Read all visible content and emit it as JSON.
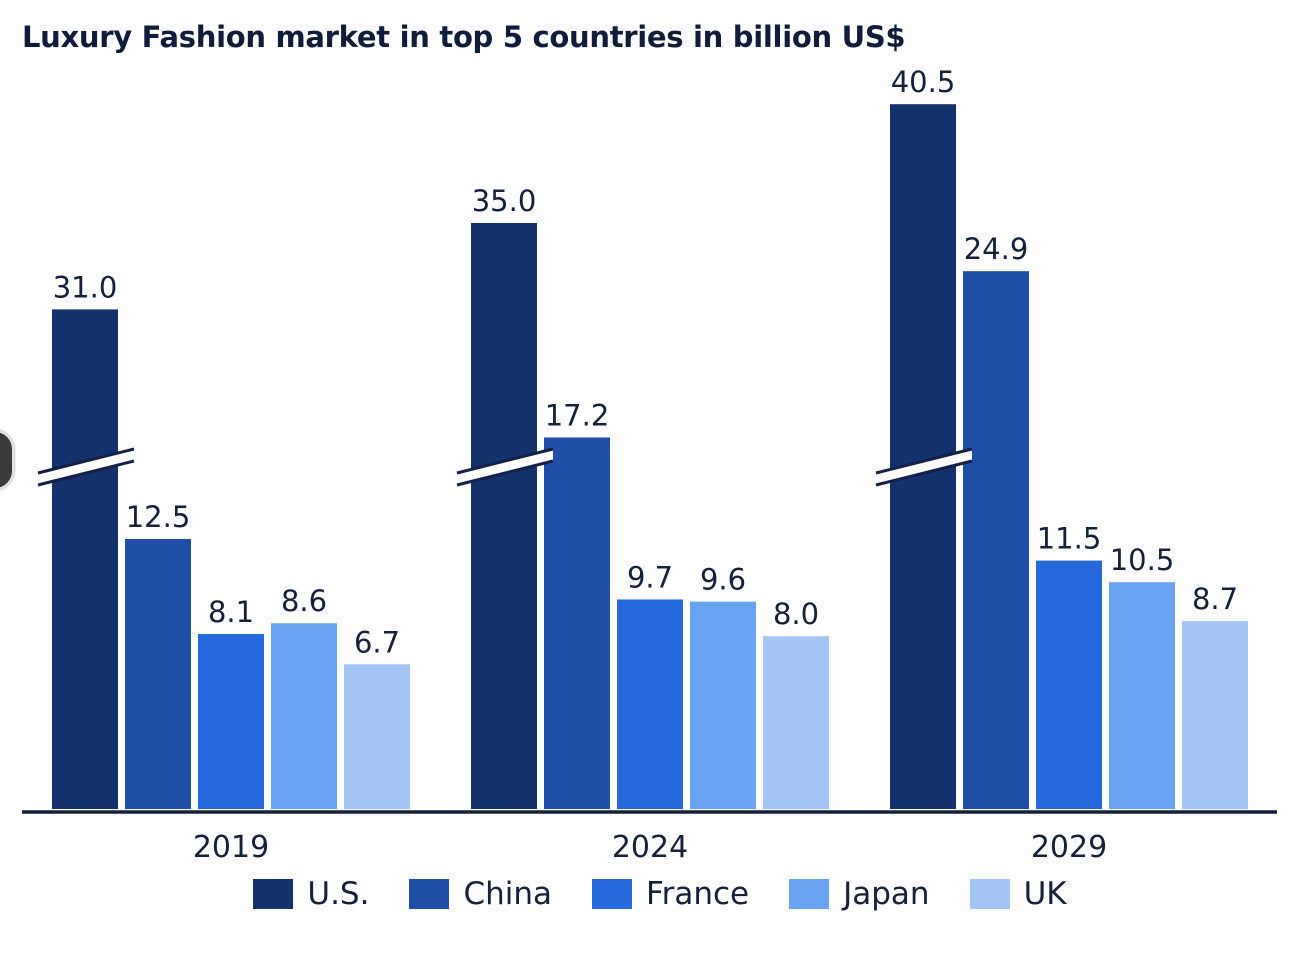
{
  "chart_data": {
    "type": "bar",
    "title": "Luxury Fashion market in top 5 countries in billion US$",
    "categories": [
      "2019",
      "2024",
      "2029"
    ],
    "series": [
      {
        "name": "U.S.",
        "color": "#13316a",
        "values": [
          31.0,
          35.0,
          40.5
        ],
        "labels": [
          "31.0",
          "35.0",
          "40.5"
        ]
      },
      {
        "name": "China",
        "color": "#1f4fa6",
        "values": [
          12.5,
          17.2,
          24.9
        ],
        "labels": [
          "12.5",
          "17.2",
          "24.9"
        ]
      },
      {
        "name": "France",
        "color": "#2569dd",
        "values": [
          8.1,
          9.7,
          11.5
        ],
        "labels": [
          "8.1",
          "9.7",
          "11.5"
        ]
      },
      {
        "name": "Japan",
        "color": "#6aa3f1",
        "values": [
          8.6,
          9.6,
          10.5
        ],
        "labels": [
          "8.6",
          "9.6",
          "10.5"
        ]
      },
      {
        "name": "UK",
        "color": "#a3c5f6",
        "values": [
          6.7,
          8.0,
          8.7
        ],
        "labels": [
          "6.7",
          "8.0",
          "8.7"
        ]
      }
    ],
    "axis_break": true,
    "axis_break_series": "U.S.",
    "grid": false,
    "legend_position": "bottom"
  }
}
